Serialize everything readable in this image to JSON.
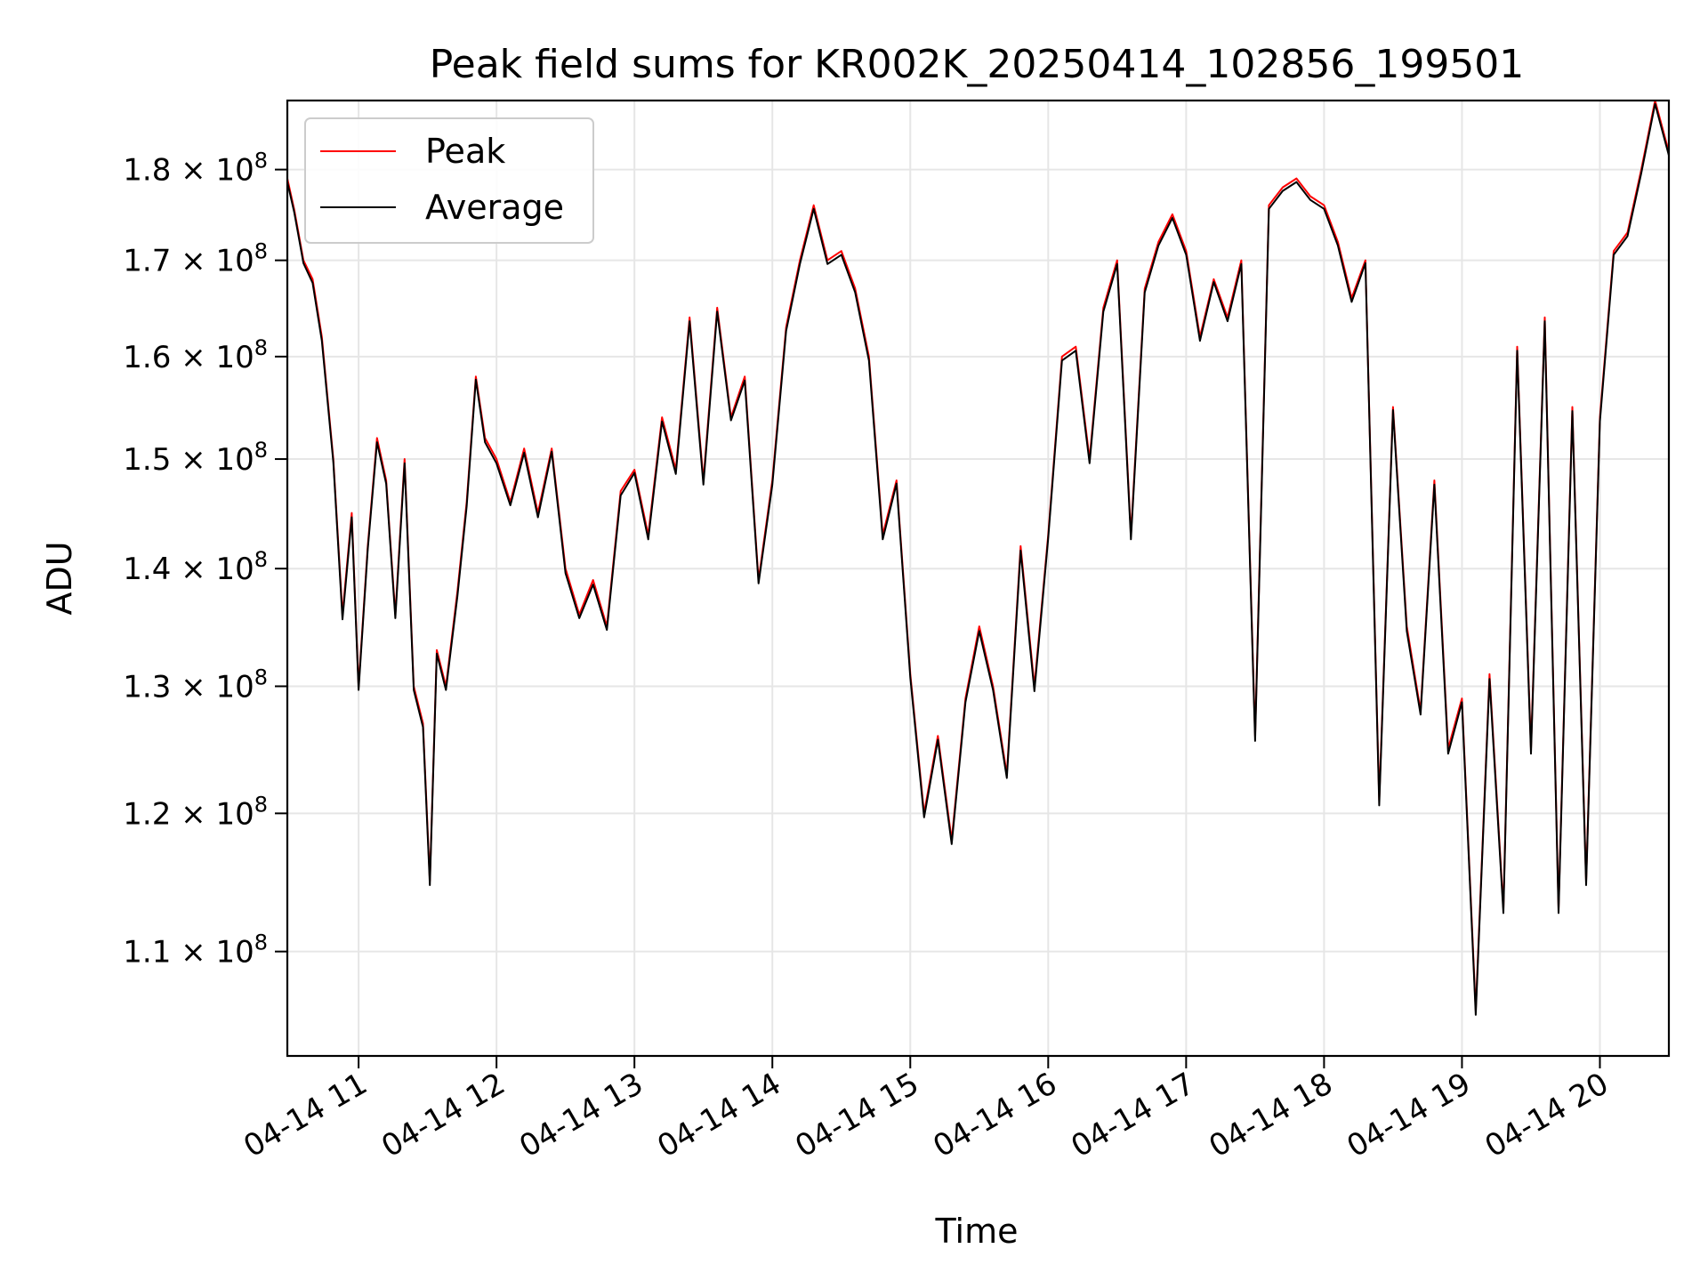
{
  "chart_data": {
    "type": "line",
    "title": "Peak field sums for KR002K_20250414_102856_199501",
    "xlabel": "Time",
    "ylabel": "ADU",
    "y_scale": "log",
    "xlim": [
      "2025-04-14 10:29",
      "2025-04-14 20:30"
    ],
    "ylim": [
      103000000,
      188000000
    ],
    "grid": true,
    "legend_position": "top-left",
    "x_ticks": [
      {
        "label": "04-14 11",
        "time": "2025-04-14 11:00"
      },
      {
        "label": "04-14 12",
        "time": "2025-04-14 12:00"
      },
      {
        "label": "04-14 13",
        "time": "2025-04-14 13:00"
      },
      {
        "label": "04-14 14",
        "time": "2025-04-14 14:00"
      },
      {
        "label": "04-14 15",
        "time": "2025-04-14 15:00"
      },
      {
        "label": "04-14 16",
        "time": "2025-04-14 16:00"
      },
      {
        "label": "04-14 17",
        "time": "2025-04-14 17:00"
      },
      {
        "label": "04-14 18",
        "time": "2025-04-14 18:00"
      },
      {
        "label": "04-14 19",
        "time": "2025-04-14 19:00"
      },
      {
        "label": "04-14 20",
        "time": "2025-04-14 20:00"
      }
    ],
    "y_ticks": [
      {
        "mantissa": "1.1",
        "exponent": "8",
        "value": 110000000
      },
      {
        "mantissa": "1.2",
        "exponent": "8",
        "value": 120000000
      },
      {
        "mantissa": "1.3",
        "exponent": "8",
        "value": 130000000
      },
      {
        "mantissa": "1.4",
        "exponent": "8",
        "value": 140000000
      },
      {
        "mantissa": "1.5",
        "exponent": "8",
        "value": 150000000
      },
      {
        "mantissa": "1.6",
        "exponent": "8",
        "value": 160000000
      },
      {
        "mantissa": "1.7",
        "exponent": "8",
        "value": 170000000
      },
      {
        "mantissa": "1.8",
        "exponent": "8",
        "value": 180000000
      }
    ],
    "x": [
      "2025-04-14 10:29",
      "2025-04-14 10:32",
      "2025-04-14 10:36",
      "2025-04-14 10:40",
      "2025-04-14 10:44",
      "2025-04-14 10:49",
      "2025-04-14 10:53",
      "2025-04-14 10:57",
      "2025-04-14 11:00",
      "2025-04-14 11:04",
      "2025-04-14 11:08",
      "2025-04-14 11:12",
      "2025-04-14 11:16",
      "2025-04-14 11:20",
      "2025-04-14 11:24",
      "2025-04-14 11:28",
      "2025-04-14 11:31",
      "2025-04-14 11:34",
      "2025-04-14 11:38",
      "2025-04-14 11:43",
      "2025-04-14 11:47",
      "2025-04-14 11:51",
      "2025-04-14 11:55",
      "2025-04-14 12:00",
      "2025-04-14 12:06",
      "2025-04-14 12:12",
      "2025-04-14 12:18",
      "2025-04-14 12:24",
      "2025-04-14 12:30",
      "2025-04-14 12:36",
      "2025-04-14 12:42",
      "2025-04-14 12:48",
      "2025-04-14 12:54",
      "2025-04-14 13:00",
      "2025-04-14 13:06",
      "2025-04-14 13:12",
      "2025-04-14 13:18",
      "2025-04-14 13:24",
      "2025-04-14 13:30",
      "2025-04-14 13:36",
      "2025-04-14 13:42",
      "2025-04-14 13:48",
      "2025-04-14 13:54",
      "2025-04-14 14:00",
      "2025-04-14 14:06",
      "2025-04-14 14:12",
      "2025-04-14 14:18",
      "2025-04-14 14:24",
      "2025-04-14 14:30",
      "2025-04-14 14:36",
      "2025-04-14 14:42",
      "2025-04-14 14:48",
      "2025-04-14 14:54",
      "2025-04-14 15:00",
      "2025-04-14 15:06",
      "2025-04-14 15:12",
      "2025-04-14 15:18",
      "2025-04-14 15:24",
      "2025-04-14 15:30",
      "2025-04-14 15:36",
      "2025-04-14 15:42",
      "2025-04-14 15:48",
      "2025-04-14 15:54",
      "2025-04-14 16:00",
      "2025-04-14 16:06",
      "2025-04-14 16:12",
      "2025-04-14 16:18",
      "2025-04-14 16:24",
      "2025-04-14 16:30",
      "2025-04-14 16:36",
      "2025-04-14 16:42",
      "2025-04-14 16:48",
      "2025-04-14 16:54",
      "2025-04-14 17:00",
      "2025-04-14 17:06",
      "2025-04-14 17:12",
      "2025-04-14 17:18",
      "2025-04-14 17:24",
      "2025-04-14 17:30",
      "2025-04-14 17:36",
      "2025-04-14 17:42",
      "2025-04-14 17:48",
      "2025-04-14 17:54",
      "2025-04-14 18:00",
      "2025-04-14 18:06",
      "2025-04-14 18:12",
      "2025-04-14 18:18",
      "2025-04-14 18:24",
      "2025-04-14 18:30",
      "2025-04-14 18:36",
      "2025-04-14 18:42",
      "2025-04-14 18:48",
      "2025-04-14 18:54",
      "2025-04-14 19:00",
      "2025-04-14 19:06",
      "2025-04-14 19:12",
      "2025-04-14 19:18",
      "2025-04-14 19:24",
      "2025-04-14 19:30",
      "2025-04-14 19:36",
      "2025-04-14 19:42",
      "2025-04-14 19:48",
      "2025-04-14 19:54",
      "2025-04-14 20:00",
      "2025-04-14 20:06",
      "2025-04-14 20:12",
      "2025-04-14 20:18",
      "2025-04-14 20:24",
      "2025-04-14 20:30"
    ],
    "series": [
      {
        "name": "Peak",
        "color": "#ff0000",
        "values": [
          179000000,
          175500000,
          170000000,
          168000000,
          162000000,
          150000000,
          136000000,
          145000000,
          130000000,
          142000000,
          152000000,
          148000000,
          136000000,
          150000000,
          130000000,
          127000000,
          115000000,
          133000000,
          130000000,
          138000000,
          146000000,
          158000000,
          152000000,
          150000000,
          146000000,
          151000000,
          145000000,
          151000000,
          140000000,
          136000000,
          139000000,
          135000000,
          147000000,
          149000000,
          143000000,
          154000000,
          149000000,
          164000000,
          148000000,
          165000000,
          154000000,
          158000000,
          139000000,
          148000000,
          163000000,
          170000000,
          176000000,
          170000000,
          171000000,
          167000000,
          160000000,
          143000000,
          148000000,
          131000000,
          120000000,
          126000000,
          118000000,
          129000000,
          135000000,
          130000000,
          123000000,
          142000000,
          130000000,
          143000000,
          160000000,
          161000000,
          150000000,
          165000000,
          170000000,
          143000000,
          167000000,
          172000000,
          175000000,
          171000000,
          162000000,
          168000000,
          164000000,
          170000000,
          126000000,
          176000000,
          178000000,
          179000000,
          177000000,
          176000000,
          172000000,
          166000000,
          170000000,
          121000000,
          155000000,
          135000000,
          128000000,
          148000000,
          125000000,
          129000000,
          106000000,
          131000000,
          113000000,
          161000000,
          125000000,
          164000000,
          113000000,
          155000000,
          115000000,
          154000000,
          171000000,
          173000000,
          180000000,
          188000000,
          182000000
        ]
      },
      {
        "name": "Average",
        "color": "#000000",
        "values": [
          178600000,
          175200000,
          169700000,
          167600000,
          161600000,
          149700000,
          135600000,
          144600000,
          129700000,
          141700000,
          151600000,
          147700000,
          135700000,
          149600000,
          129700000,
          126700000,
          114700000,
          132700000,
          129700000,
          137600000,
          145600000,
          157700000,
          151600000,
          149600000,
          145700000,
          150600000,
          144600000,
          150700000,
          139600000,
          135700000,
          138600000,
          134700000,
          146600000,
          148700000,
          142600000,
          153600000,
          148600000,
          163600000,
          147600000,
          164600000,
          153700000,
          157600000,
          138700000,
          147600000,
          162600000,
          169600000,
          175600000,
          169600000,
          170600000,
          166600000,
          159600000,
          142600000,
          147700000,
          130700000,
          119700000,
          125700000,
          117700000,
          128700000,
          134600000,
          129700000,
          122700000,
          141600000,
          129600000,
          142700000,
          159600000,
          160600000,
          149600000,
          164600000,
          169600000,
          142600000,
          166600000,
          171600000,
          174600000,
          170600000,
          161600000,
          167700000,
          163600000,
          169600000,
          125600000,
          175600000,
          177600000,
          178600000,
          176600000,
          175600000,
          171600000,
          165600000,
          169700000,
          120600000,
          154700000,
          134600000,
          127700000,
          147600000,
          124600000,
          128700000,
          105700000,
          130600000,
          112700000,
          160600000,
          124600000,
          163600000,
          112700000,
          154600000,
          114700000,
          153600000,
          170600000,
          172600000,
          179600000,
          187600000,
          181600000
        ]
      }
    ]
  }
}
